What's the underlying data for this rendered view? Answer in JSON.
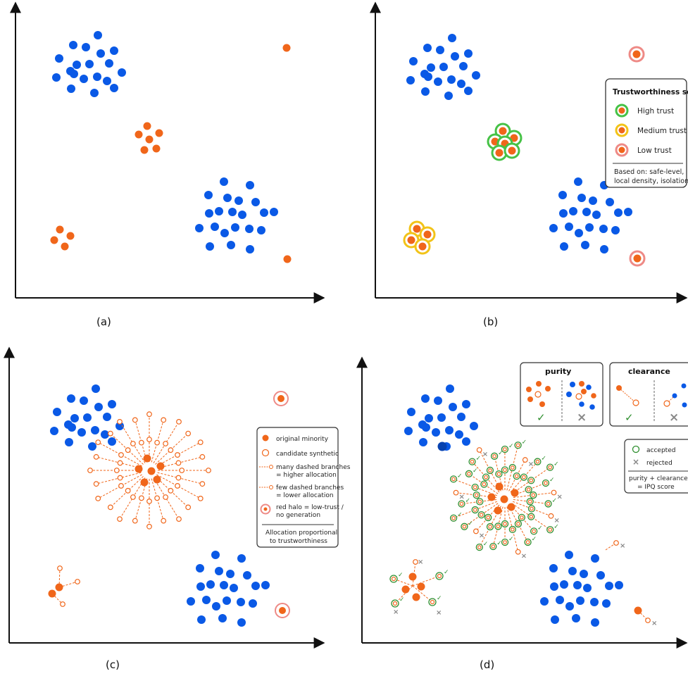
{
  "captions": [
    "(a)",
    "(b)",
    "(c)",
    "(d)"
  ],
  "colors": {
    "majority": "#0a59e6",
    "minority": "#f0661a",
    "high_trust": "#46c246",
    "medium_trust": "#f2c318",
    "low_trust": "#ee8a86",
    "accepted": "#2f8f2f",
    "rejected": "#888888",
    "axis": "#111111"
  },
  "panel_b_legend": {
    "title": "Trustworthiness score",
    "items": [
      "High trust",
      "Medium trust",
      "Low trust"
    ],
    "note_lines": [
      "Based on: safe-level,",
      "local density, isolation"
    ]
  },
  "panel_c_legend": {
    "items": [
      {
        "lines": [
          "original minority"
        ]
      },
      {
        "lines": [
          "candidate synthetic"
        ]
      },
      {
        "lines": [
          "many dashed branches",
          "= higher allocation"
        ]
      },
      {
        "lines": [
          "few dashed branches",
          "= lower allocation"
        ]
      },
      {
        "lines": [
          "red halo = low-trust /",
          "no generation"
        ]
      }
    ],
    "note_lines": [
      "Allocation proportional",
      "to trustworthiness"
    ]
  },
  "panel_d_purity": {
    "title": "purity",
    "accept_mark": "✓",
    "reject_mark": "×"
  },
  "panel_d_clearance": {
    "title": "clearance",
    "accept_mark": "✓",
    "reject_mark": "×"
  },
  "panel_d_legend": {
    "items": [
      "accepted",
      "rejected"
    ],
    "note_lines": [
      "purity + clearance",
      "= IPQ score"
    ]
  }
}
